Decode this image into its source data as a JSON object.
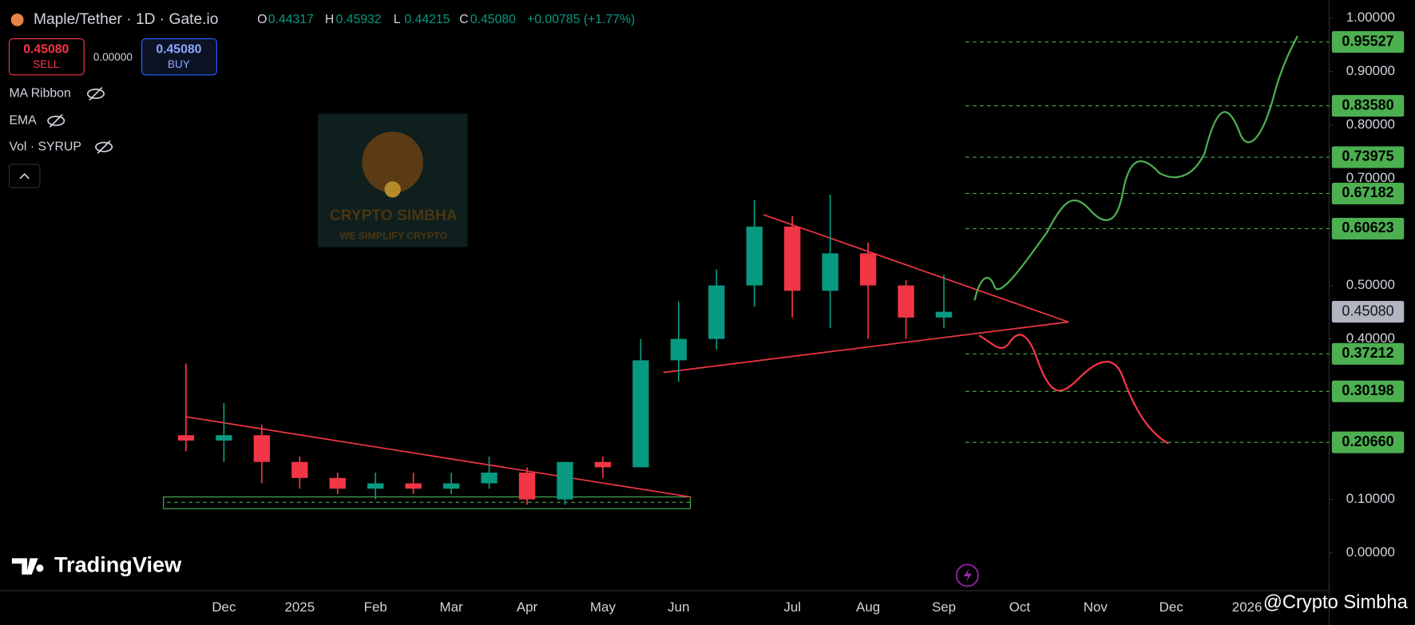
{
  "header": {
    "symbol": "Maple/Tether · 1D · Gate.io",
    "ohlc": [
      [
        "O",
        "0.44317"
      ],
      [
        "H",
        "0.45932"
      ],
      [
        "L",
        "0.44215"
      ],
      [
        "C",
        "0.45080"
      ]
    ],
    "change": "+0.00785 (+1.77%)",
    "sell_price": "0.45080",
    "sell": "SELL",
    "spread": "0.00000",
    "buy_price": "0.45080",
    "buy": "BUY",
    "indicators": [
      "MA Ribbon",
      "EMA",
      "Vol · SYRUP"
    ]
  },
  "watermark": {
    "title": "CRYPTO SIMBHA",
    "subtitle": "WE SIMPLIFY CRYPTO"
  },
  "branding": {
    "logo": "TradingView",
    "credit": "@Crypto Simbha"
  },
  "chart_data": {
    "type": "candlestick",
    "categories": [
      null,
      "Dec",
      null,
      "2025",
      null,
      "Feb",
      null,
      "Mar",
      null,
      "Apr",
      null,
      "May",
      null,
      "Jun",
      null,
      null,
      "Jul",
      null,
      "Aug",
      null,
      "Sep",
      null,
      "Oct",
      null,
      "Nov",
      null,
      "Dec",
      null,
      "2026"
    ],
    "open": [
      0.22,
      0.21,
      0.22,
      0.17,
      0.14,
      0.12,
      0.13,
      0.12,
      0.13,
      0.15,
      0.1,
      0.17,
      0.16,
      0.36,
      0.4,
      0.5,
      0.61,
      0.49,
      0.56,
      0.5,
      0.44,
      null,
      null,
      null,
      null,
      null,
      null,
      null,
      null
    ],
    "high": [
      0.354,
      0.28,
      0.24,
      0.18,
      0.15,
      0.15,
      0.15,
      0.15,
      0.18,
      0.16,
      0.17,
      0.18,
      0.4,
      0.47,
      0.53,
      0.66,
      0.63,
      0.67,
      0.58,
      0.51,
      0.52,
      null,
      null,
      null,
      null,
      null,
      null,
      null,
      null
    ],
    "low": [
      0.19,
      0.17,
      0.13,
      0.12,
      0.11,
      0.1,
      0.11,
      0.11,
      0.12,
      0.09,
      0.09,
      0.14,
      0.16,
      0.32,
      0.38,
      0.46,
      0.44,
      0.42,
      0.4,
      0.4,
      0.42,
      null,
      null,
      null,
      null,
      null,
      null,
      null,
      null
    ],
    "close": [
      0.21,
      0.22,
      0.17,
      0.14,
      0.12,
      0.13,
      0.12,
      0.13,
      0.15,
      0.1,
      0.17,
      0.16,
      0.36,
      0.4,
      0.5,
      0.61,
      0.49,
      0.56,
      0.5,
      0.44,
      0.4508,
      null,
      null,
      null,
      null,
      null,
      null,
      null,
      null
    ],
    "up_color": "#089981",
    "down_color": "#f23645",
    "ylim": [
      -0.0708,
      1.0337
    ],
    "yticks": [
      {
        "value": 1,
        "label": "1.00000"
      },
      {
        "value": 0.9,
        "label": "0.90000"
      },
      {
        "value": 0.8,
        "label": "0.80000"
      },
      {
        "value": 0.7,
        "label": "0.70000"
      },
      {
        "value": 0.5,
        "label": "0.50000"
      },
      {
        "value": 0.4,
        "label": "0.40000"
      },
      {
        "value": 0.1,
        "label": "0.10000"
      },
      {
        "value": 0,
        "label": "0.00000"
      }
    ],
    "last_price": {
      "value": 0.4508,
      "label": "0.45080"
    },
    "levels": [
      0.95527,
      {
        "value": 0.8358,
        "label": "0.83580"
      },
      0.73975,
      0.67182,
      0.60623,
      0.37212,
      0.30198,
      {
        "value": 0.2066,
        "label": "0.20660"
      }
    ],
    "level_color": "#4caf50"
  }
}
